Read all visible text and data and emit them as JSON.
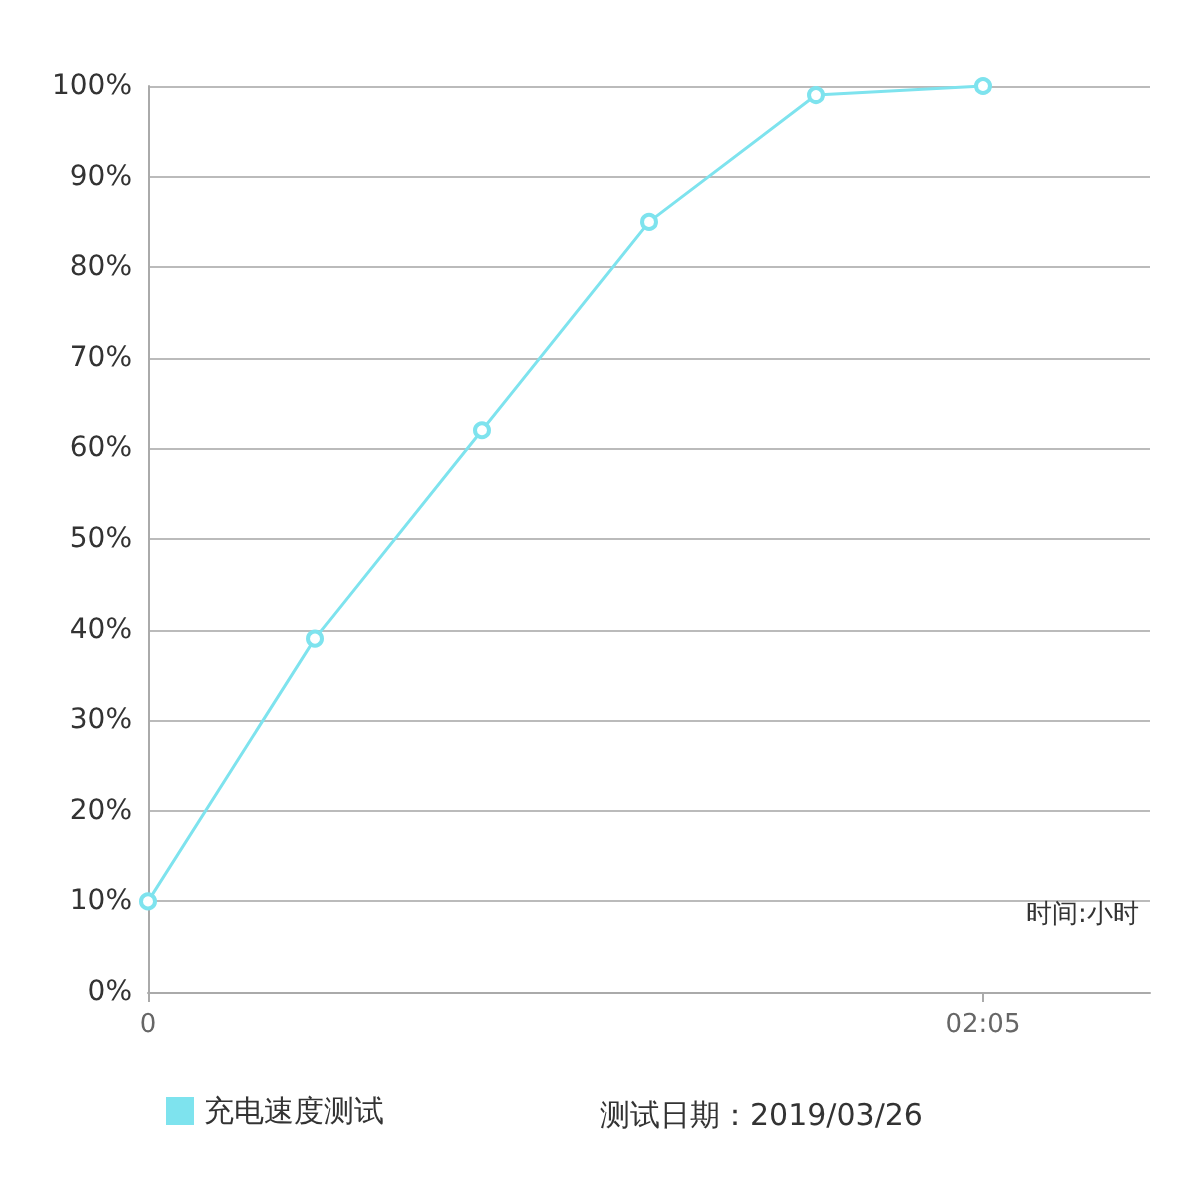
{
  "chart_data": {
    "type": "line",
    "xlabel": "时间:小时",
    "annotations": [
      "测试日期：2019/03/26"
    ],
    "x": [
      0,
      0.4167,
      0.8333,
      1.25,
      1.6667,
      2.0833
    ],
    "series": [
      {
        "name": "充电速度测试",
        "color": "#7ee3ee",
        "values": [
          10,
          39,
          62,
          85,
          99,
          100
        ]
      }
    ],
    "xlim": [
      0,
      2.5
    ],
    "xticks": [
      {
        "value": 0,
        "label": "0"
      },
      {
        "value": 2.0833,
        "label": "02:05"
      }
    ],
    "ylim": [
      0,
      100
    ],
    "yticks": [
      {
        "value": 0,
        "label": "0%"
      },
      {
        "value": 10,
        "label": "10%"
      },
      {
        "value": 20,
        "label": "20%"
      },
      {
        "value": 30,
        "label": "30%"
      },
      {
        "value": 40,
        "label": "40%"
      },
      {
        "value": 50,
        "label": "50%"
      },
      {
        "value": 60,
        "label": "60%"
      },
      {
        "value": 70,
        "label": "70%"
      },
      {
        "value": 80,
        "label": "80%"
      },
      {
        "value": 90,
        "label": "90%"
      },
      {
        "value": 100,
        "label": "100%"
      }
    ],
    "grid": "y",
    "legend": "bottom left",
    "marker": "circle",
    "line_style": "solid"
  }
}
